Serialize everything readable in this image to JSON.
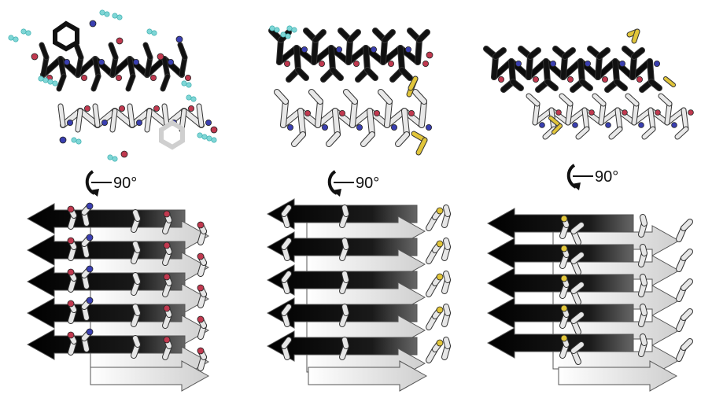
{
  "figure": {
    "panels": [
      {
        "id": "left",
        "rotation_label": "90°"
      },
      {
        "id": "middle",
        "rotation_label": "90°"
      },
      {
        "id": "right",
        "rotation_label": "90°"
      }
    ]
  },
  "colors": {
    "strand_dark": "#0b0b0b",
    "strand_light": "#f2f2f2",
    "carbon_white": "#e8e8e8",
    "nitrogen": "#3a3fb0",
    "oxygen": "#c0394f",
    "sulfur": "#e1c53a",
    "water": "#7fd6d6"
  },
  "icons": [
    "rotation-arrow-icon"
  ]
}
